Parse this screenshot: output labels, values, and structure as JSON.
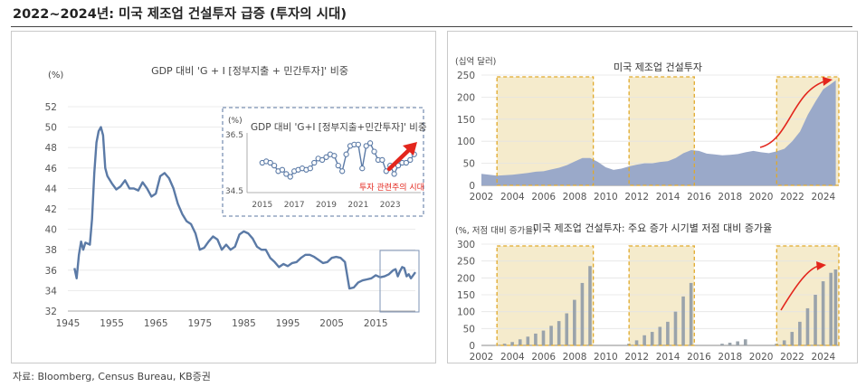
{
  "header": {
    "title": "2022~2024년: 미국 제조업 건설투자 급증 (투자의 시대)"
  },
  "source": "자료: Bloomberg, Census Bureau, KB증권",
  "colors": {
    "main_line": "#5b7aa6",
    "bar_gray": "#9aa3ab",
    "area_blue": "#9aa9c9",
    "highlight": "#f5ebcc",
    "highlight_border": "#e0a92a",
    "arrow": "#e3261d",
    "inset_border": "#7d93b5"
  },
  "chart_data": [
    {
      "type": "line",
      "title": "GDP 대비 'G + I [정부지출 + 민간투자]' 비중",
      "ylabel": "(%)",
      "ylim": [
        32,
        52
      ],
      "yticks": [
        "52",
        "50",
        "48",
        "46",
        "44",
        "42",
        "40",
        "38",
        "36",
        "34",
        "32"
      ],
      "xlim": [
        1945,
        2024
      ],
      "xticks": [
        "1945",
        "1955",
        "1965",
        "1975",
        "1985",
        "1995",
        "2005",
        "2015"
      ],
      "series": [
        {
          "values": [
            [
              1946.5,
              36.2
            ],
            [
              1947,
              35.2
            ],
            [
              1947.5,
              37.5
            ],
            [
              1948,
              38.8
            ],
            [
              1948.5,
              38.0
            ],
            [
              1949,
              38.7
            ],
            [
              1950,
              38.5
            ],
            [
              1950.5,
              41.0
            ],
            [
              1951,
              45.5
            ],
            [
              1951.5,
              48.5
            ],
            [
              1952,
              49.6
            ],
            [
              1952.5,
              50.0
            ],
            [
              1953,
              49.2
            ],
            [
              1953.5,
              46.0
            ],
            [
              1954,
              45.2
            ],
            [
              1955,
              44.5
            ],
            [
              1956,
              43.9
            ],
            [
              1957,
              44.2
            ],
            [
              1958,
              44.8
            ],
            [
              1959,
              44.0
            ],
            [
              1960,
              44.0
            ],
            [
              1961,
              43.8
            ],
            [
              1962,
              44.6
            ],
            [
              1963,
              44.0
            ],
            [
              1964,
              43.2
            ],
            [
              1965,
              43.5
            ],
            [
              1966,
              45.2
            ],
            [
              1967,
              45.5
            ],
            [
              1968,
              45.0
            ],
            [
              1969,
              44.0
            ],
            [
              1970,
              42.5
            ],
            [
              1971,
              41.5
            ],
            [
              1972,
              40.8
            ],
            [
              1973,
              40.5
            ],
            [
              1974,
              39.6
            ],
            [
              1975,
              38.0
            ],
            [
              1976,
              38.2
            ],
            [
              1977,
              38.8
            ],
            [
              1978,
              39.3
            ],
            [
              1979,
              39.0
            ],
            [
              1980,
              38.0
            ],
            [
              1981,
              38.5
            ],
            [
              1982,
              38.0
            ],
            [
              1983,
              38.3
            ],
            [
              1984,
              39.5
            ],
            [
              1985,
              39.8
            ],
            [
              1986,
              39.6
            ],
            [
              1987,
              39.1
            ],
            [
              1988,
              38.3
            ],
            [
              1989,
              38.0
            ],
            [
              1990,
              38.0
            ],
            [
              1991,
              37.2
            ],
            [
              1992,
              36.8
            ],
            [
              1993,
              36.3
            ],
            [
              1994,
              36.6
            ],
            [
              1995,
              36.4
            ],
            [
              1996,
              36.7
            ],
            [
              1997,
              36.8
            ],
            [
              1998,
              37.2
            ],
            [
              1999,
              37.5
            ],
            [
              2000,
              37.5
            ],
            [
              2001,
              37.3
            ],
            [
              2002,
              37.0
            ],
            [
              2003,
              36.7
            ],
            [
              2004,
              36.8
            ],
            [
              2005,
              37.2
            ],
            [
              2006,
              37.3
            ],
            [
              2007,
              37.2
            ],
            [
              2008,
              36.8
            ],
            [
              2009,
              34.2
            ],
            [
              2010,
              34.3
            ],
            [
              2011,
              34.8
            ],
            [
              2012,
              35.0
            ],
            [
              2013,
              35.1
            ],
            [
              2014,
              35.2
            ],
            [
              2015,
              35.5
            ],
            [
              2016,
              35.3
            ],
            [
              2017,
              35.4
            ],
            [
              2018,
              35.6
            ],
            [
              2019,
              36.0
            ],
            [
              2019.5,
              36.1
            ],
            [
              2020,
              35.4
            ],
            [
              2020.5,
              35.9
            ],
            [
              2021,
              36.3
            ],
            [
              2021.5,
              36.2
            ],
            [
              2022,
              35.4
            ],
            [
              2022.5,
              35.6
            ],
            [
              2023,
              35.2
            ],
            [
              2023.5,
              35.5
            ],
            [
              2024,
              35.8
            ]
          ]
        }
      ],
      "inset": {
        "title": "GDP 대비 'G+I [정부지출+민간투자]' 비중",
        "ylabel": "(%)",
        "yticks": [
          "36.5",
          "34.5"
        ],
        "xticks": [
          "2015",
          "2017",
          "2019",
          "2021",
          "2023"
        ],
        "ylim": [
          34.5,
          36.5
        ],
        "xlim": [
          2014.5,
          2024.8
        ],
        "annotation": "투자 관련주의 시대",
        "series": [
          {
            "values": [
              [
                2015,
                35.5
              ],
              [
                2015.25,
                35.55
              ],
              [
                2015.5,
                35.5
              ],
              [
                2015.75,
                35.4
              ],
              [
                2016,
                35.2
              ],
              [
                2016.25,
                35.25
              ],
              [
                2016.5,
                35.1
              ],
              [
                2016.75,
                35.0
              ],
              [
                2017,
                35.2
              ],
              [
                2017.25,
                35.25
              ],
              [
                2017.5,
                35.3
              ],
              [
                2017.75,
                35.25
              ],
              [
                2018,
                35.3
              ],
              [
                2018.25,
                35.5
              ],
              [
                2018.5,
                35.65
              ],
              [
                2018.75,
                35.6
              ],
              [
                2019,
                35.7
              ],
              [
                2019.25,
                35.8
              ],
              [
                2019.5,
                35.75
              ],
              [
                2019.75,
                35.4
              ],
              [
                2020,
                35.2
              ],
              [
                2020.25,
                35.8
              ],
              [
                2020.5,
                36.1
              ],
              [
                2020.75,
                36.15
              ],
              [
                2021,
                36.15
              ],
              [
                2021.25,
                35.3
              ],
              [
                2021.5,
                36.1
              ],
              [
                2021.75,
                36.2
              ],
              [
                2022,
                35.9
              ],
              [
                2022.25,
                35.6
              ],
              [
                2022.5,
                35.6
              ],
              [
                2022.75,
                35.2
              ],
              [
                2023,
                35.4
              ],
              [
                2023.25,
                35.1
              ],
              [
                2023.5,
                35.4
              ],
              [
                2023.75,
                35.5
              ],
              [
                2024,
                35.5
              ],
              [
                2024.25,
                35.6
              ],
              [
                2024.5,
                35.8
              ]
            ]
          }
        ]
      }
    },
    {
      "type": "area",
      "title": "미국 제조업 건설투자",
      "ylabel": "(십억 달러)",
      "ylim": [
        0,
        250
      ],
      "yticks": [
        "250",
        "200",
        "150",
        "100",
        "50",
        "0"
      ],
      "xlim": [
        2002,
        2025
      ],
      "xticks": [
        "2002",
        "2004",
        "2006",
        "2008",
        "2010",
        "2012",
        "2014",
        "2016",
        "2018",
        "2020",
        "2022",
        "2024"
      ],
      "highlight_ranges": [
        [
          2003,
          2009.2
        ],
        [
          2011.5,
          2015.7
        ],
        [
          2021,
          2025
        ]
      ],
      "series": [
        {
          "values": [
            [
              2002,
              26
            ],
            [
              2002.5,
              24
            ],
            [
              2003,
              22
            ],
            [
              2003.5,
              23
            ],
            [
              2004,
              24
            ],
            [
              2004.5,
              26
            ],
            [
              2005,
              28
            ],
            [
              2005.5,
              31
            ],
            [
              2006,
              32
            ],
            [
              2006.5,
              36
            ],
            [
              2007,
              40
            ],
            [
              2007.5,
              46
            ],
            [
              2008,
              54
            ],
            [
              2008.5,
              62
            ],
            [
              2009,
              62
            ],
            [
              2009.5,
              53
            ],
            [
              2010,
              41
            ],
            [
              2010.5,
              35
            ],
            [
              2011,
              38
            ],
            [
              2011.5,
              43
            ],
            [
              2012,
              47
            ],
            [
              2012.5,
              50
            ],
            [
              2013,
              50
            ],
            [
              2013.5,
              53
            ],
            [
              2014,
              55
            ],
            [
              2014.5,
              62
            ],
            [
              2015,
              73
            ],
            [
              2015.5,
              80
            ],
            [
              2016,
              78
            ],
            [
              2016.5,
              72
            ],
            [
              2017,
              70
            ],
            [
              2017.5,
              68
            ],
            [
              2018,
              69
            ],
            [
              2018.5,
              71
            ],
            [
              2019,
              75
            ],
            [
              2019.5,
              78
            ],
            [
              2020,
              75
            ],
            [
              2020.5,
              73
            ],
            [
              2021,
              77
            ],
            [
              2021.5,
              83
            ],
            [
              2022,
              100
            ],
            [
              2022.5,
              122
            ],
            [
              2023,
              160
            ],
            [
              2023.5,
              190
            ],
            [
              2024,
              218
            ],
            [
              2024.5,
              230
            ],
            [
              2024.8,
              238
            ]
          ]
        }
      ]
    },
    {
      "type": "bar",
      "title": "미국 제조업 건설투자: 주요 증가 시기별 저점 대비 증가율",
      "ylabel": "(%, 저점 대비 증가율)",
      "ylim": [
        0,
        300
      ],
      "yticks": [
        "300",
        "250",
        "200",
        "150",
        "100",
        "50",
        "0"
      ],
      "xlim": [
        2002,
        2025
      ],
      "xticks": [
        "2002",
        "2004",
        "2006",
        "2008",
        "2010",
        "2012",
        "2014",
        "2016",
        "2018",
        "2020",
        "2022",
        "2024"
      ],
      "highlight_ranges": [
        [
          2003,
          2009.2
        ],
        [
          2011.5,
          2015.7
        ],
        [
          2021,
          2025
        ]
      ],
      "series": [
        {
          "values": [
            [
              2003,
              0
            ],
            [
              2003.5,
              5
            ],
            [
              2004,
              10
            ],
            [
              2004.5,
              18
            ],
            [
              2005,
              26
            ],
            [
              2005.5,
              35
            ],
            [
              2006,
              44
            ],
            [
              2006.5,
              58
            ],
            [
              2007,
              72
            ],
            [
              2007.5,
              95
            ],
            [
              2008,
              135
            ],
            [
              2008.5,
              185
            ],
            [
              2009,
              235
            ],
            [
              2011.5,
              5
            ],
            [
              2012,
              15
            ],
            [
              2012.5,
              30
            ],
            [
              2013,
              40
            ],
            [
              2013.5,
              55
            ],
            [
              2014,
              70
            ],
            [
              2014.5,
              100
            ],
            [
              2015,
              145
            ],
            [
              2015.5,
              185
            ],
            [
              2017.5,
              5
            ],
            [
              2018,
              8
            ],
            [
              2018.5,
              12
            ],
            [
              2019,
              18
            ],
            [
              2021,
              5
            ],
            [
              2021.5,
              15
            ],
            [
              2022,
              40
            ],
            [
              2022.5,
              70
            ],
            [
              2023,
              110
            ],
            [
              2023.5,
              150
            ],
            [
              2024,
              190
            ],
            [
              2024.5,
              215
            ],
            [
              2024.8,
              225
            ]
          ]
        }
      ]
    }
  ]
}
